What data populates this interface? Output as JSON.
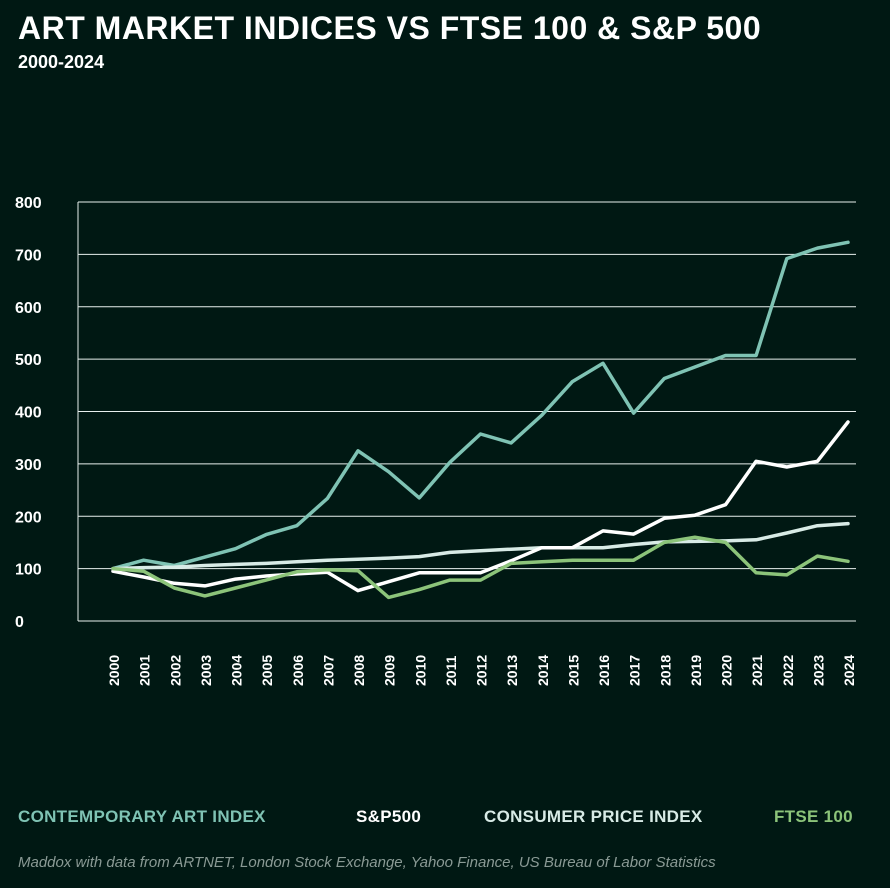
{
  "header": {
    "title": "ART MARKET INDICES VS FTSE 100 & S&P 500",
    "subtitle": "2000-2024"
  },
  "legend": [
    {
      "label": "CONTEMPORARY ART INDEX",
      "color": "#7fc3b4"
    },
    {
      "label": "S&P500",
      "color": "#ffffff"
    },
    {
      "label": "CONSUMER PRICE INDEX",
      "color": "#d8ebe6"
    },
    {
      "label": "FTSE 100",
      "color": "#8cc47a"
    }
  ],
  "source": "Maddox with data from ARTNET, London Stock Exchange, Yahoo Finance, US Bureau of Labor Statistics",
  "chart_data": {
    "type": "line",
    "title": "ART MARKET INDICES VS FTSE 100 & S&P 500",
    "subtitle": "2000-2024",
    "x": [
      "2000",
      "2001",
      "2002",
      "2003",
      "2004",
      "2005",
      "2006",
      "2007",
      "2008",
      "2009",
      "2010",
      "2011",
      "2012",
      "2013",
      "2014",
      "2015",
      "2016",
      "2017",
      "2018",
      "2019",
      "2020",
      "2021",
      "2022",
      "2023",
      "2024"
    ],
    "ylim": [
      0,
      800
    ],
    "yticks": [
      0,
      100,
      200,
      300,
      400,
      500,
      600,
      700,
      800
    ],
    "grid": true,
    "legend_position": "bottom",
    "series": [
      {
        "name": "CONTEMPORARY ART INDEX",
        "color": "#7fc3b4",
        "values": [
          100,
          116,
          106,
          122,
          138,
          165,
          182,
          234,
          325,
          285,
          235,
          303,
          357,
          340,
          393,
          457,
          492,
          397,
          463,
          485,
          507,
          507,
          692,
          712,
          723
        ]
      },
      {
        "name": "S&P500",
        "color": "#ffffff",
        "values": [
          95,
          84,
          72,
          67,
          80,
          86,
          90,
          93,
          58,
          75,
          92,
          92,
          92,
          115,
          140,
          140,
          172,
          166,
          196,
          202,
          222,
          305,
          294,
          305,
          380
        ]
      },
      {
        "name": "CONSUMER PRICE INDEX",
        "color": "#d8ebe6",
        "values": [
          100,
          102,
          103,
          106,
          108,
          110,
          113,
          116,
          118,
          120,
          123,
          131,
          134,
          137,
          140,
          140,
          140,
          146,
          151,
          152,
          153,
          155,
          168,
          182,
          186
        ]
      },
      {
        "name": "FTSE 100",
        "color": "#8cc47a",
        "values": [
          100,
          95,
          63,
          48,
          63,
          78,
          94,
          98,
          96,
          45,
          60,
          78,
          78,
          110,
          113,
          116,
          116,
          116,
          150,
          160,
          150,
          92,
          88,
          124,
          114
        ]
      }
    ]
  }
}
